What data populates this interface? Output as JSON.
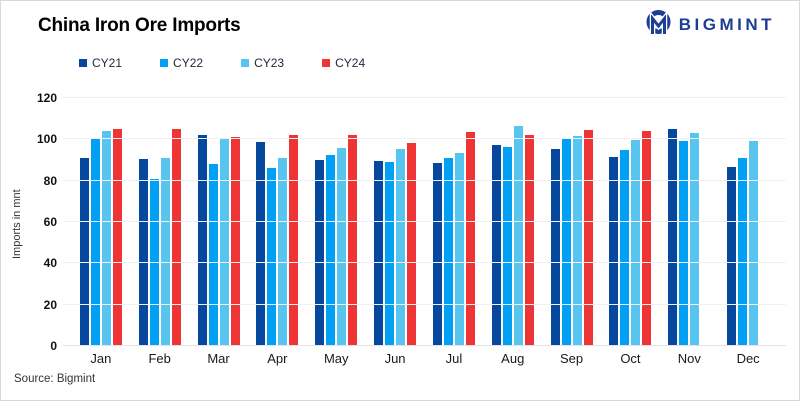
{
  "header": {
    "title": "China Iron Ore Imports",
    "logo_text": "BIGMINT"
  },
  "footer": {
    "source": "Source: Bigmint"
  },
  "colors": {
    "brand_navy": "#1d3e94",
    "cy21": "#05489e",
    "cy22": "#00a0f5",
    "cy23": "#58c5f0",
    "cy24": "#ee3434",
    "grid": "#f1f1f4"
  },
  "chart_data": {
    "type": "bar",
    "title": "China Iron Ore Imports",
    "xlabel": "",
    "ylabel": "Imports in mnt",
    "ylim": [
      0,
      120
    ],
    "ytick_step": 20,
    "grid": true,
    "legend_position": "top-left",
    "categories": [
      "Jan",
      "Feb",
      "Mar",
      "Apr",
      "May",
      "Jun",
      "Jul",
      "Aug",
      "Sep",
      "Oct",
      "Nov",
      "Dec"
    ],
    "series": [
      {
        "name": "CY21",
        "color": "#05489e",
        "values": [
          91,
          90.5,
          102,
          98.5,
          90,
          89.5,
          88.5,
          97.5,
          95.5,
          91.5,
          105,
          86.5
        ]
      },
      {
        "name": "CY22",
        "color": "#00a0f5",
        "values": [
          100,
          81,
          88,
          86,
          92.5,
          89,
          91,
          96.5,
          100,
          95,
          99,
          91
        ]
      },
      {
        "name": "CY23",
        "color": "#58c5f0",
        "values": [
          104,
          91,
          100.5,
          91,
          96,
          95.5,
          93.5,
          106.5,
          101.5,
          99.5,
          103,
          99
        ]
      },
      {
        "name": "CY24",
        "color": "#ee3434",
        "values": [
          105,
          105,
          101,
          102,
          102,
          98,
          103.5,
          102,
          104.5,
          104,
          null,
          null
        ]
      }
    ]
  }
}
